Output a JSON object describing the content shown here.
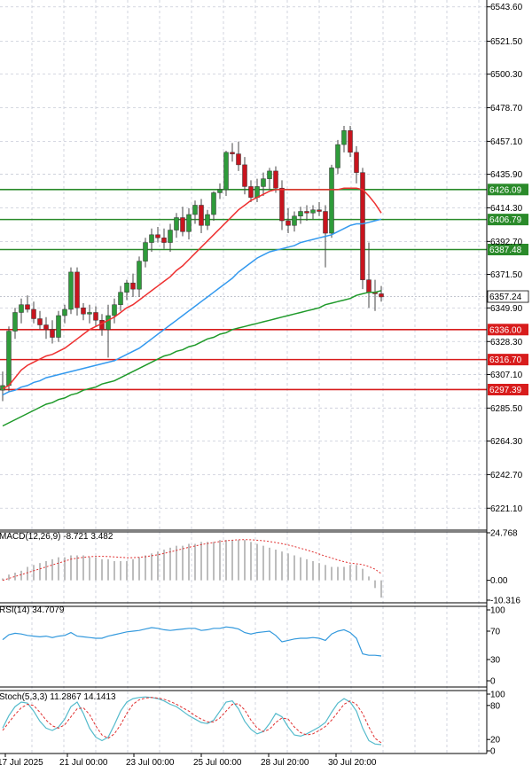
{
  "colors": {
    "bull": "#2e9b3a",
    "bear": "#c8141e",
    "ma_fast": "#ee3030",
    "ma_mid": "#3399ee",
    "ma_slow": "#1f9a2a",
    "resistance": "#2a8a2a",
    "support": "#d81c1c",
    "price_box": "#ffffff",
    "grid": "#c8ccd8",
    "macd_hist": "#bdbdbd",
    "macd_signal": "#e03030",
    "rsi": "#3399dd",
    "stoch_main": "#55bbcc",
    "stoch_signal": "#e03030"
  },
  "chart_data": [
    {
      "type": "candlestick",
      "name": "price",
      "price_axis_ticks": [
        "6543.60",
        "6521.50",
        "6500.30",
        "6478.70",
        "6457.10",
        "6435.90",
        "6414.30",
        "6392.70",
        "6371.50",
        "6349.90",
        "6328.30",
        "6307.10",
        "6285.50",
        "6264.30",
        "6242.70",
        "6221.10"
      ],
      "ylim": [
        6207,
        6548
      ],
      "x_labels": [
        "17 Jul 2025",
        "21 Jul 00:00",
        "23 Jul 00:00",
        "25 Jul 00:00",
        "28 Jul 20:00",
        "30 Jul 20:00"
      ],
      "candles": [
        {
          "o": 6297,
          "h": 6309,
          "l": 6290,
          "c": 6300
        },
        {
          "o": 6300,
          "h": 6338,
          "l": 6296,
          "c": 6335
        },
        {
          "o": 6335,
          "h": 6350,
          "l": 6330,
          "c": 6347
        },
        {
          "o": 6347,
          "h": 6356,
          "l": 6340,
          "c": 6352
        },
        {
          "o": 6352,
          "h": 6358,
          "l": 6347,
          "c": 6349
        },
        {
          "o": 6349,
          "h": 6354,
          "l": 6340,
          "c": 6343
        },
        {
          "o": 6343,
          "h": 6348,
          "l": 6336,
          "c": 6339
        },
        {
          "o": 6339,
          "h": 6344,
          "l": 6330,
          "c": 6336
        },
        {
          "o": 6336,
          "h": 6342,
          "l": 6327,
          "c": 6331
        },
        {
          "o": 6331,
          "h": 6348,
          "l": 6328,
          "c": 6345
        },
        {
          "o": 6345,
          "h": 6352,
          "l": 6340,
          "c": 6349
        },
        {
          "o": 6349,
          "h": 6376,
          "l": 6346,
          "c": 6373
        },
        {
          "o": 6373,
          "h": 6376,
          "l": 6345,
          "c": 6350
        },
        {
          "o": 6350,
          "h": 6353,
          "l": 6342,
          "c": 6346
        },
        {
          "o": 6346,
          "h": 6352,
          "l": 6340,
          "c": 6347
        },
        {
          "o": 6347,
          "h": 6351,
          "l": 6338,
          "c": 6342
        },
        {
          "o": 6342,
          "h": 6346,
          "l": 6332,
          "c": 6336
        },
        {
          "o": 6336,
          "h": 6352,
          "l": 6318,
          "c": 6345
        },
        {
          "o": 6345,
          "h": 6356,
          "l": 6340,
          "c": 6352
        },
        {
          "o": 6352,
          "h": 6364,
          "l": 6348,
          "c": 6360
        },
        {
          "o": 6360,
          "h": 6368,
          "l": 6355,
          "c": 6366
        },
        {
          "o": 6366,
          "h": 6372,
          "l": 6357,
          "c": 6362
        },
        {
          "o": 6362,
          "h": 6383,
          "l": 6357,
          "c": 6380
        },
        {
          "o": 6380,
          "h": 6395,
          "l": 6376,
          "c": 6392
        },
        {
          "o": 6392,
          "h": 6401,
          "l": 6386,
          "c": 6397
        },
        {
          "o": 6397,
          "h": 6402,
          "l": 6392,
          "c": 6395
        },
        {
          "o": 6395,
          "h": 6401,
          "l": 6388,
          "c": 6392
        },
        {
          "o": 6392,
          "h": 6404,
          "l": 6386,
          "c": 6400
        },
        {
          "o": 6400,
          "h": 6411,
          "l": 6395,
          "c": 6408
        },
        {
          "o": 6408,
          "h": 6415,
          "l": 6396,
          "c": 6399
        },
        {
          "o": 6399,
          "h": 6414,
          "l": 6394,
          "c": 6410
        },
        {
          "o": 6410,
          "h": 6419,
          "l": 6404,
          "c": 6416
        },
        {
          "o": 6416,
          "h": 6420,
          "l": 6398,
          "c": 6403
        },
        {
          "o": 6403,
          "h": 6413,
          "l": 6400,
          "c": 6410
        },
        {
          "o": 6410,
          "h": 6425,
          "l": 6406,
          "c": 6424
        },
        {
          "o": 6424,
          "h": 6430,
          "l": 6420,
          "c": 6426
        },
        {
          "o": 6426,
          "h": 6451,
          "l": 6422,
          "c": 6450
        },
        {
          "o": 6450,
          "h": 6456,
          "l": 6444,
          "c": 6449
        },
        {
          "o": 6449,
          "h": 6457,
          "l": 6438,
          "c": 6442
        },
        {
          "o": 6442,
          "h": 6447,
          "l": 6423,
          "c": 6428
        },
        {
          "o": 6428,
          "h": 6432,
          "l": 6418,
          "c": 6421
        },
        {
          "o": 6421,
          "h": 6433,
          "l": 6418,
          "c": 6428
        },
        {
          "o": 6428,
          "h": 6437,
          "l": 6422,
          "c": 6433
        },
        {
          "o": 6433,
          "h": 6440,
          "l": 6426,
          "c": 6438
        },
        {
          "o": 6438,
          "h": 6441,
          "l": 6424,
          "c": 6427
        },
        {
          "o": 6427,
          "h": 6432,
          "l": 6400,
          "c": 6406
        },
        {
          "o": 6406,
          "h": 6414,
          "l": 6398,
          "c": 6403
        },
        {
          "o": 6403,
          "h": 6412,
          "l": 6399,
          "c": 6409
        },
        {
          "o": 6409,
          "h": 6415,
          "l": 6404,
          "c": 6412
        },
        {
          "o": 6412,
          "h": 6416,
          "l": 6406,
          "c": 6411
        },
        {
          "o": 6411,
          "h": 6416,
          "l": 6407,
          "c": 6413
        },
        {
          "o": 6413,
          "h": 6418,
          "l": 6409,
          "c": 6412
        },
        {
          "o": 6412,
          "h": 6416,
          "l": 6376,
          "c": 6398
        },
        {
          "o": 6398,
          "h": 6442,
          "l": 6395,
          "c": 6440
        },
        {
          "o": 6440,
          "h": 6458,
          "l": 6436,
          "c": 6455
        },
        {
          "o": 6455,
          "h": 6467,
          "l": 6450,
          "c": 6464
        },
        {
          "o": 6464,
          "h": 6467,
          "l": 6447,
          "c": 6450
        },
        {
          "o": 6450,
          "h": 6454,
          "l": 6430,
          "c": 6437
        },
        {
          "o": 6437,
          "h": 6440,
          "l": 6362,
          "c": 6368
        },
        {
          "o": 6368,
          "h": 6392,
          "l": 6350,
          "c": 6360
        },
        {
          "o": 6360,
          "h": 6368,
          "l": 6348,
          "c": 6359
        },
        {
          "o": 6359,
          "h": 6364,
          "l": 6354,
          "c": 6357
        }
      ],
      "ma_fast": [
        6298,
        6300,
        6305,
        6310,
        6313,
        6315,
        6317,
        6319,
        6320,
        6322,
        6324,
        6327,
        6330,
        6333,
        6336,
        6338,
        6340,
        6342,
        6344,
        6347,
        6350,
        6352,
        6355,
        6358,
        6361,
        6364,
        6367,
        6370,
        6374,
        6377,
        6381,
        6385,
        6389,
        6393,
        6397,
        6401,
        6405,
        6409,
        6413,
        6416,
        6419,
        6421,
        6423,
        6425,
        6426,
        6426,
        6426,
        6426,
        6426,
        6426,
        6426,
        6426,
        6426,
        6426,
        6426,
        6427,
        6427,
        6427,
        6426,
        6422,
        6417,
        6411
      ],
      "ma_mid": [
        6294,
        6296,
        6297,
        6299,
        6300,
        6302,
        6303,
        6305,
        6306,
        6307,
        6308,
        6309,
        6310,
        6311,
        6312,
        6313,
        6314,
        6315,
        6316,
        6318,
        6320,
        6322,
        6324,
        6327,
        6330,
        6333,
        6336,
        6339,
        6342,
        6345,
        6348,
        6351,
        6354,
        6357,
        6360,
        6363,
        6366,
        6369,
        6373,
        6376,
        6379,
        6382,
        6384,
        6386,
        6387,
        6388,
        6389,
        6390,
        6392,
        6393,
        6394,
        6395,
        6396,
        6397,
        6399,
        6401,
        6403,
        6404,
        6404,
        6405,
        6406,
        6407
      ],
      "ma_slow": [
        6274,
        6276,
        6278,
        6280,
        6282,
        6284,
        6286,
        6288,
        6289,
        6291,
        6292,
        6294,
        6295,
        6297,
        6298,
        6299,
        6301,
        6302,
        6303,
        6305,
        6307,
        6309,
        6311,
        6313,
        6315,
        6317,
        6319,
        6320,
        6322,
        6323,
        6325,
        6326,
        6328,
        6330,
        6331,
        6333,
        6334,
        6336,
        6337,
        6338,
        6339,
        6340,
        6341,
        6342,
        6343,
        6344,
        6345,
        6346,
        6347,
        6348,
        6349,
        6350,
        6352,
        6353,
        6354,
        6355,
        6356,
        6358,
        6359,
        6360,
        6360,
        6361
      ],
      "levels": [
        {
          "label": "6426.09",
          "value": 6426.09,
          "kind": "resistance"
        },
        {
          "label": "6406.79",
          "value": 6406.79,
          "kind": "resistance"
        },
        {
          "label": "6387.48",
          "value": 6387.48,
          "kind": "resistance"
        },
        {
          "label": "6336.00",
          "value": 6336.0,
          "kind": "support"
        },
        {
          "label": "6316.70",
          "value": 6316.7,
          "kind": "support"
        },
        {
          "label": "6297.39",
          "value": 6297.39,
          "kind": "support"
        }
      ],
      "current_price": "6357.24"
    },
    {
      "type": "bar",
      "name": "macd",
      "label": "MACD(12,26,9) -8.721 3.482",
      "ticks": [
        "24.768",
        "0.00",
        "-10.316"
      ],
      "ylim": [
        -10.316,
        24.768
      ],
      "hist": [
        1,
        3,
        4,
        5,
        7,
        8,
        9,
        10,
        11,
        12,
        12,
        13,
        13,
        13,
        12,
        12,
        11,
        11,
        10,
        10,
        10,
        11,
        12,
        13,
        14,
        15,
        16,
        17,
        18,
        18,
        19,
        19,
        20,
        20,
        20,
        21,
        21,
        21,
        21,
        21,
        20,
        19,
        18,
        17,
        16,
        15,
        14,
        13,
        12,
        11,
        10,
        9,
        8,
        7,
        7,
        7,
        8,
        8,
        6,
        2,
        -4,
        -9
      ],
      "signal": [
        0,
        1,
        2,
        3,
        4,
        5,
        6,
        7,
        8,
        9,
        10,
        11,
        11.5,
        12,
        12.3,
        12.5,
        12.5,
        12.4,
        12.2,
        12,
        11.8,
        11.8,
        12,
        12.3,
        12.8,
        13.3,
        14,
        14.8,
        15.6,
        16.4,
        17.2,
        17.9,
        18.6,
        19.2,
        19.7,
        20.2,
        20.6,
        20.9,
        21.1,
        21.2,
        21.1,
        20.9,
        20.6,
        20.2,
        19.7,
        19.1,
        18.4,
        17.6,
        16.7,
        15.8,
        14.8,
        13.7,
        12.6,
        11.6,
        10.6,
        9.7,
        9,
        8.6,
        8.2,
        7.2,
        5.8,
        3.5
      ]
    },
    {
      "type": "line",
      "name": "rsi",
      "label": "RSI(14) 34.7079",
      "ticks": [
        "100",
        "70",
        "30",
        "0"
      ],
      "ylim": [
        0,
        100
      ],
      "values": [
        58,
        65,
        67,
        66,
        64,
        63,
        62,
        63,
        61,
        63,
        64,
        68,
        63,
        62,
        61,
        60,
        60,
        63,
        65,
        67,
        69,
        70,
        71,
        73,
        75,
        74,
        72,
        71,
        72,
        73,
        74,
        74,
        71,
        72,
        74,
        74,
        76,
        75,
        73,
        68,
        66,
        68,
        69,
        70,
        64,
        55,
        57,
        59,
        60,
        60,
        61,
        60,
        57,
        66,
        70,
        72,
        68,
        60,
        38,
        36,
        36,
        35
      ]
    },
    {
      "type": "line",
      "name": "stochastic",
      "label": "Stoch(5,3,3) 11.2867 14.1413",
      "ticks": [
        "100",
        "80",
        "20",
        "0"
      ],
      "ylim": [
        0,
        100
      ],
      "k": [
        40,
        62,
        78,
        86,
        84,
        70,
        52,
        40,
        36,
        42,
        56,
        78,
        86,
        66,
        40,
        24,
        18,
        24,
        46,
        70,
        86,
        92,
        94,
        95,
        94,
        92,
        88,
        82,
        78,
        70,
        62,
        56,
        50,
        48,
        54,
        70,
        86,
        88,
        74,
        52,
        38,
        30,
        34,
        48,
        66,
        60,
        42,
        28,
        26,
        30,
        36,
        42,
        50,
        68,
        84,
        92,
        86,
        70,
        40,
        18,
        12,
        11
      ],
      "d": [
        36,
        50,
        64,
        76,
        82,
        80,
        68,
        54,
        44,
        40,
        46,
        60,
        74,
        76,
        64,
        44,
        28,
        22,
        30,
        46,
        66,
        82,
        90,
        93,
        94,
        93,
        91,
        87,
        82,
        76,
        70,
        62,
        56,
        51,
        51,
        58,
        70,
        82,
        83,
        72,
        54,
        40,
        34,
        38,
        50,
        58,
        56,
        42,
        32,
        28,
        30,
        36,
        43,
        54,
        68,
        82,
        88,
        82,
        66,
        42,
        22,
        14
      ]
    }
  ]
}
